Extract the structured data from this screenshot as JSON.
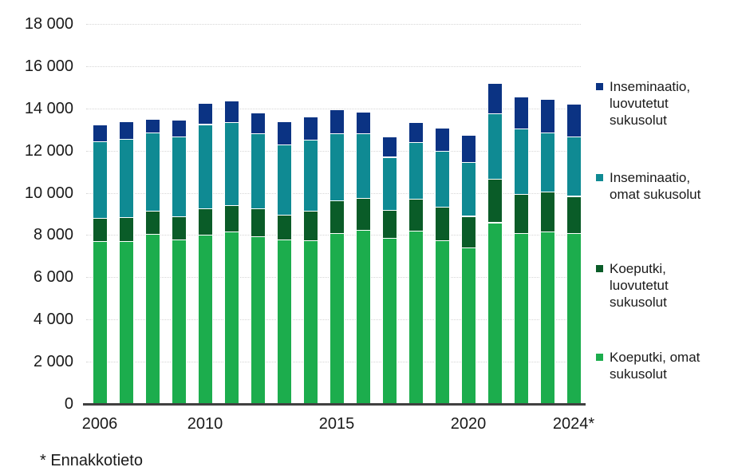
{
  "footnote": "* Ennakkotieto",
  "chart_data": {
    "type": "bar",
    "stacked": true,
    "title": "",
    "xlabel": "",
    "ylabel": "",
    "categories": [
      "2006",
      "2007",
      "2008",
      "2009",
      "2010",
      "2011",
      "2012",
      "2013",
      "2014",
      "2015",
      "2016",
      "2017",
      "2018",
      "2019",
      "2020",
      "2021",
      "2022",
      "2023",
      "2024"
    ],
    "series": [
      {
        "name": "Koeputki, omat sukusolut",
        "color": "#1cad4d",
        "values": [
          7700,
          7700,
          8050,
          7800,
          8000,
          8150,
          7950,
          7800,
          7750,
          8100,
          8250,
          7850,
          8200,
          7750,
          7400,
          8600,
          8100,
          8150,
          8100
        ]
      },
      {
        "name": "Koeputki, luovutetut sukusolut",
        "color": "#0a5c28",
        "values": [
          1100,
          1150,
          1100,
          1100,
          1250,
          1250,
          1300,
          1150,
          1400,
          1550,
          1500,
          1350,
          1500,
          1600,
          1500,
          2050,
          1850,
          1900,
          1750
        ]
      },
      {
        "name": "Inseminaatio, omat sukusolut",
        "color": "#0f8a93",
        "values": [
          3650,
          3700,
          3700,
          3750,
          4000,
          3950,
          3550,
          3350,
          3350,
          3150,
          3050,
          2500,
          2700,
          2650,
          2550,
          3100,
          3100,
          2800,
          2800
        ]
      },
      {
        "name": "Inseminaatio, luovutetut sukusolut",
        "color": "#0b3383",
        "values": [
          800,
          850,
          650,
          800,
          1000,
          1000,
          1000,
          1100,
          1100,
          1150,
          1050,
          950,
          950,
          1100,
          1300,
          1450,
          1500,
          1600,
          1550
        ]
      }
    ],
    "totals": [
      13250,
      13400,
      13500,
      13450,
      14250,
      14350,
      13800,
      13400,
      13600,
      13950,
      13850,
      12650,
      13350,
      13100,
      12750,
      15200,
      14550,
      14450,
      14200
    ],
    "ylim": [
      0,
      18000
    ],
    "ytick_step": 2000,
    "ytick_labels": [
      "0",
      "2 000",
      "4 000",
      "6 000",
      "8 000",
      "10 000",
      "12 000",
      "14 000",
      "16 000",
      "18 000"
    ],
    "xticks": [
      {
        "index": 0,
        "label": "2006"
      },
      {
        "index": 4,
        "label": "2010"
      },
      {
        "index": 9,
        "label": "2015"
      },
      {
        "index": 14,
        "label": "2020"
      },
      {
        "index": 18,
        "label": "2024*"
      }
    ],
    "grid": "horizontal-dotted",
    "legend_position": "right",
    "axis_color": "#404040",
    "gridline_color": "#d6d6d6",
    "text_color": "#1a1a1a"
  }
}
